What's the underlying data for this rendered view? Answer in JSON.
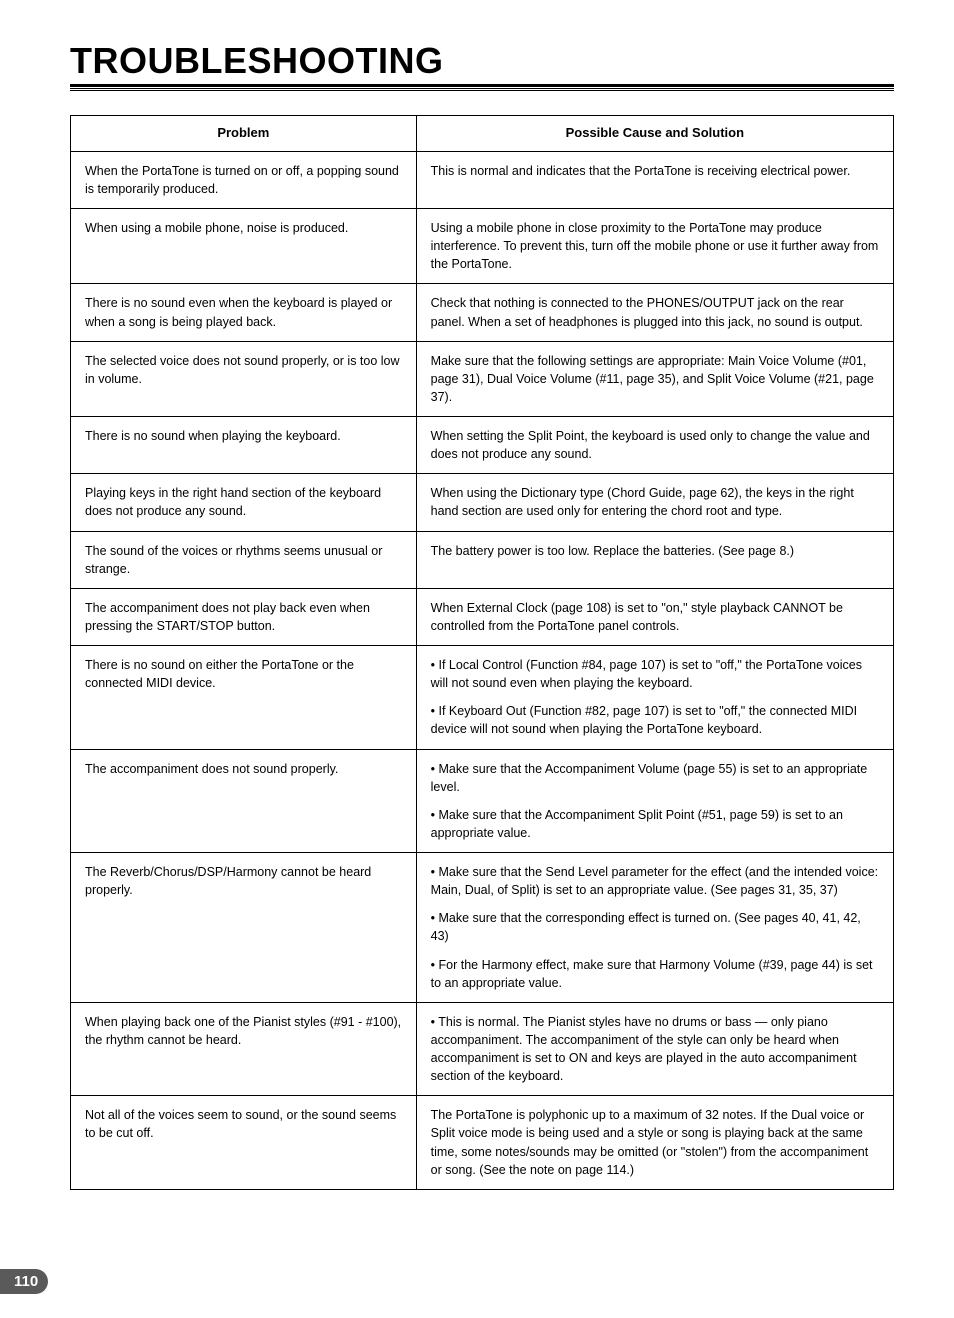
{
  "page": {
    "title": "TROUBLESHOOTING",
    "number": "110"
  },
  "table": {
    "headers": {
      "problem": "Problem",
      "solution": "Possible Cause and Solution"
    },
    "col_widths_pct": [
      42,
      58
    ],
    "border_color": "#000000",
    "font_size_pt": 12.5,
    "rows": [
      {
        "problem": "When the PortaTone is turned on or off, a popping sound is temporarily produced.",
        "solutions": [
          "This is normal and indicates that the PortaTone is receiving electrical power."
        ]
      },
      {
        "problem": "When using a mobile phone, noise is produced.",
        "solutions": [
          "Using a mobile phone in close proximity to the PortaTone may produce interference.  To prevent this, turn off the mobile phone or use it further away from the PortaTone."
        ]
      },
      {
        "problem": "There is no sound even when the keyboard is played or when a song is being played back.",
        "solutions": [
          "Check that nothing is connected to the PHONES/OUTPUT jack on the rear panel.  When a set of headphones is plugged into this jack, no sound is output."
        ]
      },
      {
        "problem": "The selected voice does not sound properly, or is too low in volume.",
        "solutions": [
          "Make sure that the following settings are appropriate: Main Voice Volume (#01, page 31), Dual Voice Volume (#11, page 35), and Split Voice Volume (#21, page 37)."
        ]
      },
      {
        "problem": "There is no sound when playing the keyboard.",
        "solutions": [
          "When setting the Split Point, the keyboard is used only to change the value and does not produce any sound."
        ]
      },
      {
        "problem": "Playing keys in the right hand section of the keyboard does not produce any sound.",
        "solutions": [
          "When using the Dictionary type (Chord Guide, page 62), the keys in the right hand section are used only for entering the chord root and type."
        ]
      },
      {
        "problem": "The sound of the voices or rhythms seems unusual or strange.",
        "solutions": [
          "The battery power is too low.  Replace the batteries.  (See page 8.)"
        ]
      },
      {
        "problem": "The accompaniment does not play back even when pressing the START/STOP button.",
        "solutions": [
          "When External Clock (page 108) is set to \"on,\" style playback CANNOT be controlled from the PortaTone panel controls."
        ]
      },
      {
        "problem": "There is no sound on either the PortaTone or the connected MIDI device.",
        "solutions": [
          "• If Local Control (Function #84, page 107) is set to \"off,\" the PortaTone voices will not sound even when playing the keyboard.",
          "• If Keyboard Out (Function #82, page 107) is set to \"off,\" the connected MIDI device will not sound when playing the PortaTone keyboard."
        ]
      },
      {
        "problem": "The accompaniment does not sound properly.",
        "solutions": [
          "• Make sure that the Accompaniment Volume (page 55) is set to an appropriate level.",
          "• Make sure that the Accompaniment Split Point (#51, page 59) is set to an appropriate value."
        ]
      },
      {
        "problem": "The Reverb/Chorus/DSP/Harmony cannot be heard properly.",
        "solutions": [
          "• Make sure that the Send Level parameter for the effect (and the intended voice: Main, Dual, of Split) is set to an appropriate value. (See pages 31, 35, 37)",
          "• Make sure that the corresponding effect is turned on.  (See pages 40, 41, 42, 43)",
          "• For the Harmony effect, make sure that Harmony Volume (#39, page 44) is set to an appropriate value."
        ]
      },
      {
        "problem": "When playing back one of the Pianist styles (#91 - #100), the rhythm cannot be heard.",
        "solutions": [
          "• This is normal.  The Pianist styles have no drums or bass — only piano accompaniment.  The accompaniment of the style can only be heard when accompaniment is set to ON and keys are played in the auto accompaniment section of the keyboard."
        ]
      },
      {
        "problem": "Not all of the voices seem to sound, or the sound seems to be cut off.",
        "solutions": [
          "The PortaTone is polyphonic up to a maximum of 32 notes.  If the Dual voice or Split voice mode is being used and a style or song is playing back at the same time, some notes/sounds may be omitted (or \"stolen\") from the accompaniment or song.  (See the note on page 114.)"
        ]
      }
    ]
  }
}
